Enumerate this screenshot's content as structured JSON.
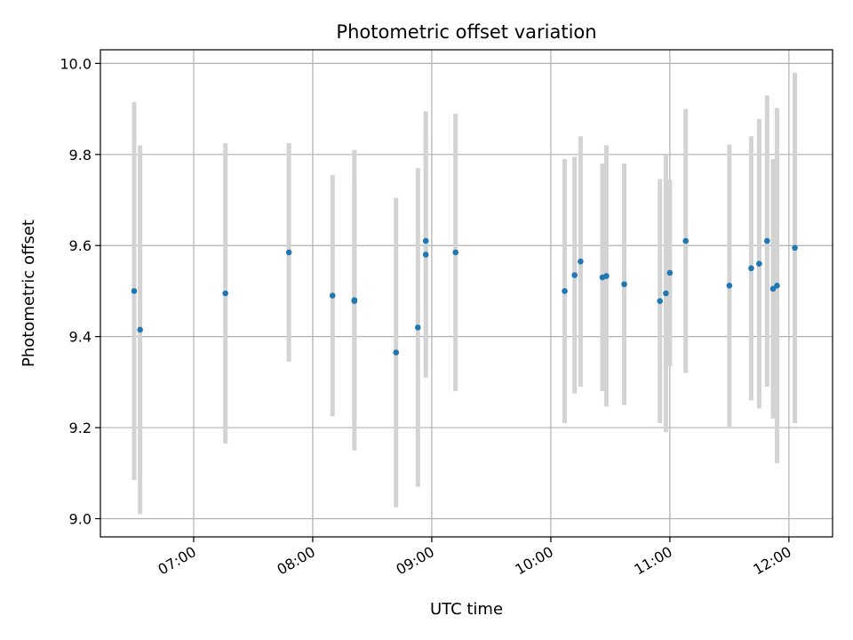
{
  "chart_data": {
    "type": "scatter",
    "title": "Photometric offset variation",
    "xlabel": "UTC time",
    "ylabel": "Photometric offset",
    "x_axis": {
      "kind": "time",
      "range": [
        "06:13",
        "12:22"
      ]
    },
    "y_axis": {
      "range": [
        8.96,
        10.03
      ]
    },
    "x_ticks": [
      "07:00",
      "08:00",
      "09:00",
      "10:00",
      "11:00",
      "12:00"
    ],
    "y_ticks": [
      9.0,
      9.2,
      9.4,
      9.6,
      9.8,
      10.0
    ],
    "grid": true,
    "colors": {
      "marker": "#1f77b4",
      "errorbar": "#d3d3d3",
      "grid": "#b0b0b0",
      "axes": "#000000"
    },
    "points": [
      {
        "x": "06:30",
        "y": 9.5,
        "err": 0.415
      },
      {
        "x": "06:33",
        "y": 9.415,
        "err": 0.405
      },
      {
        "x": "07:16",
        "y": 9.495,
        "err": 0.33
      },
      {
        "x": "07:48",
        "y": 9.585,
        "err": 0.24
      },
      {
        "x": "08:10",
        "y": 9.49,
        "err": 0.265
      },
      {
        "x": "08:21",
        "y": 9.48,
        "err": 0.33
      },
      {
        "x": "08:21",
        "y": 9.478,
        "err": 0.26
      },
      {
        "x": "08:42",
        "y": 9.365,
        "err": 0.34
      },
      {
        "x": "08:53",
        "y": 9.42,
        "err": 0.35
      },
      {
        "x": "08:57",
        "y": 9.61,
        "err": 0.285
      },
      {
        "x": "08:57",
        "y": 9.58,
        "err": 0.27
      },
      {
        "x": "09:12",
        "y": 9.585,
        "err": 0.305
      },
      {
        "x": "10:07",
        "y": 9.5,
        "err": 0.29
      },
      {
        "x": "10:12",
        "y": 9.535,
        "err": 0.26
      },
      {
        "x": "10:15",
        "y": 9.565,
        "err": 0.275
      },
      {
        "x": "10:26",
        "y": 9.53,
        "err": 0.25
      },
      {
        "x": "10:28",
        "y": 9.533,
        "err": 0.287
      },
      {
        "x": "10:37",
        "y": 9.515,
        "err": 0.265
      },
      {
        "x": "10:55",
        "y": 9.478,
        "err": 0.268
      },
      {
        "x": "10:58",
        "y": 9.495,
        "err": 0.305
      },
      {
        "x": "11:00",
        "y": 9.54,
        "err": 0.205
      },
      {
        "x": "11:08",
        "y": 9.61,
        "err": 0.29
      },
      {
        "x": "11:30",
        "y": 9.512,
        "err": 0.31
      },
      {
        "x": "11:41",
        "y": 9.55,
        "err": 0.29
      },
      {
        "x": "11:45",
        "y": 9.56,
        "err": 0.318
      },
      {
        "x": "11:49",
        "y": 9.61,
        "err": 0.32
      },
      {
        "x": "11:52",
        "y": 9.505,
        "err": 0.285
      },
      {
        "x": "11:54",
        "y": 9.512,
        "err": 0.39
      },
      {
        "x": "12:03",
        "y": 9.595,
        "err": 0.385
      }
    ]
  }
}
